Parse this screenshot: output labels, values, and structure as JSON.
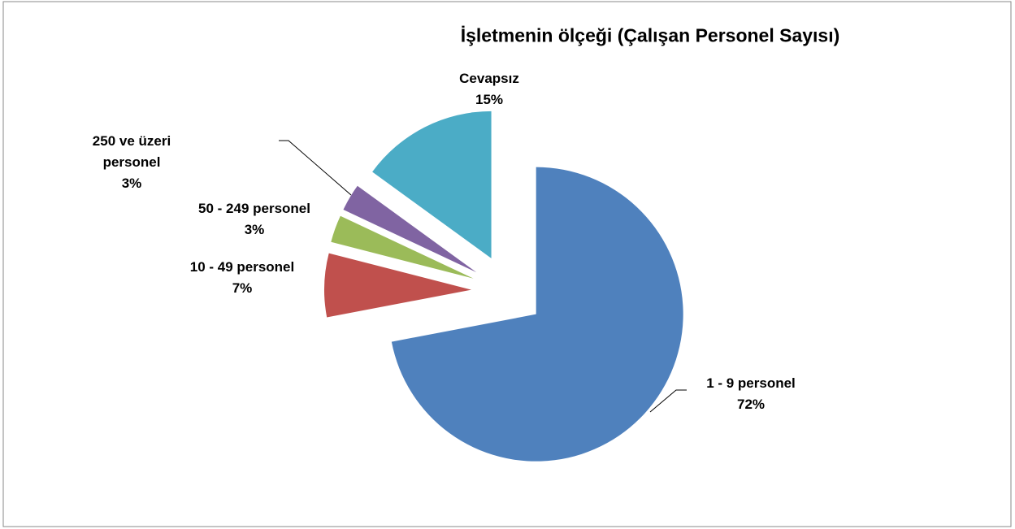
{
  "chart_data": {
    "type": "pie",
    "title": "İşletmenin ölçeği (Çalışan Personel Sayısı)",
    "categories": [
      "1 - 9 personel",
      "10 - 49 personel",
      "50 - 249 personel",
      "250 ve üzeri personel",
      "Cevapsız"
    ],
    "values": [
      72,
      7,
      3,
      3,
      15
    ],
    "value_labels": [
      "72%",
      "7%",
      "3%",
      "3%",
      "15%"
    ],
    "colors": [
      "#4f81bd",
      "#c0504d",
      "#9bbb59",
      "#8064a2",
      "#4bacc6"
    ]
  }
}
